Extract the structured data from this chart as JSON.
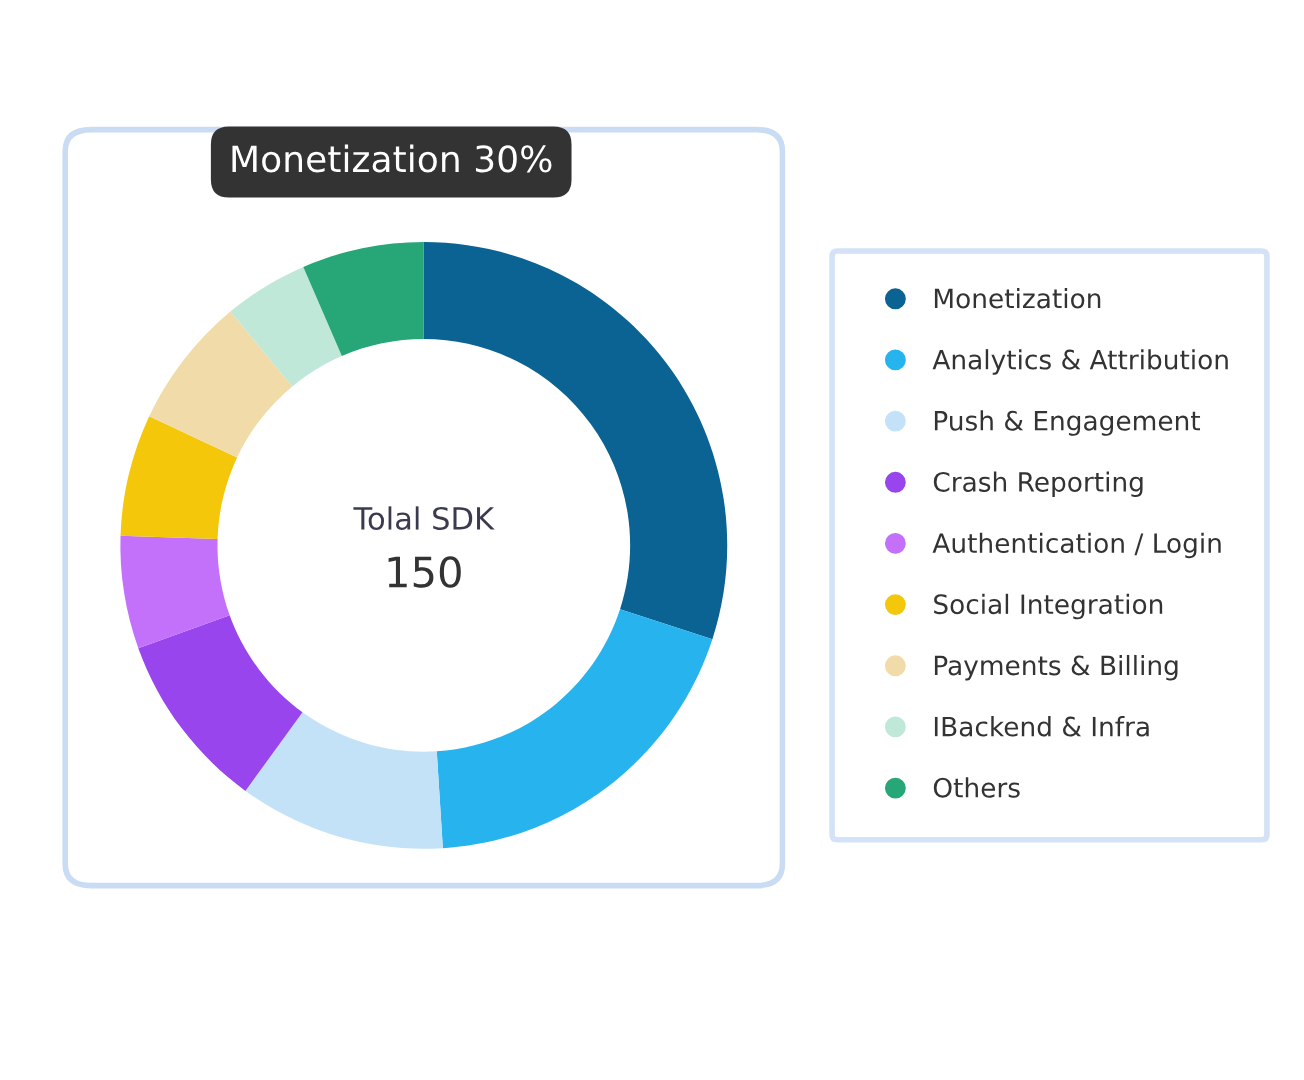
{
  "chart_data": {
    "type": "donut",
    "categories": [
      "Monetization",
      "Analytics & Attribution",
      "Push & Engagement",
      "Crash Reporting",
      "Authentication / Login",
      "Social Integration",
      "Payments & Billing",
      "IBackend & Infra",
      "Others"
    ],
    "values": [
      30,
      19,
      11,
      9.5,
      6,
      6.5,
      7,
      4.5,
      6.5
    ],
    "colors": [
      "#0b6394",
      "#27b4ee",
      "#c3e2f7",
      "#9845ee",
      "#c370fb",
      "#f4c70a",
      "#f1dba9",
      "#bfe8d8",
      "#27a677"
    ],
    "annotations": [
      "Monetization 30%",
      "Tolal SDK",
      "150"
    ],
    "legend": "right"
  }
}
